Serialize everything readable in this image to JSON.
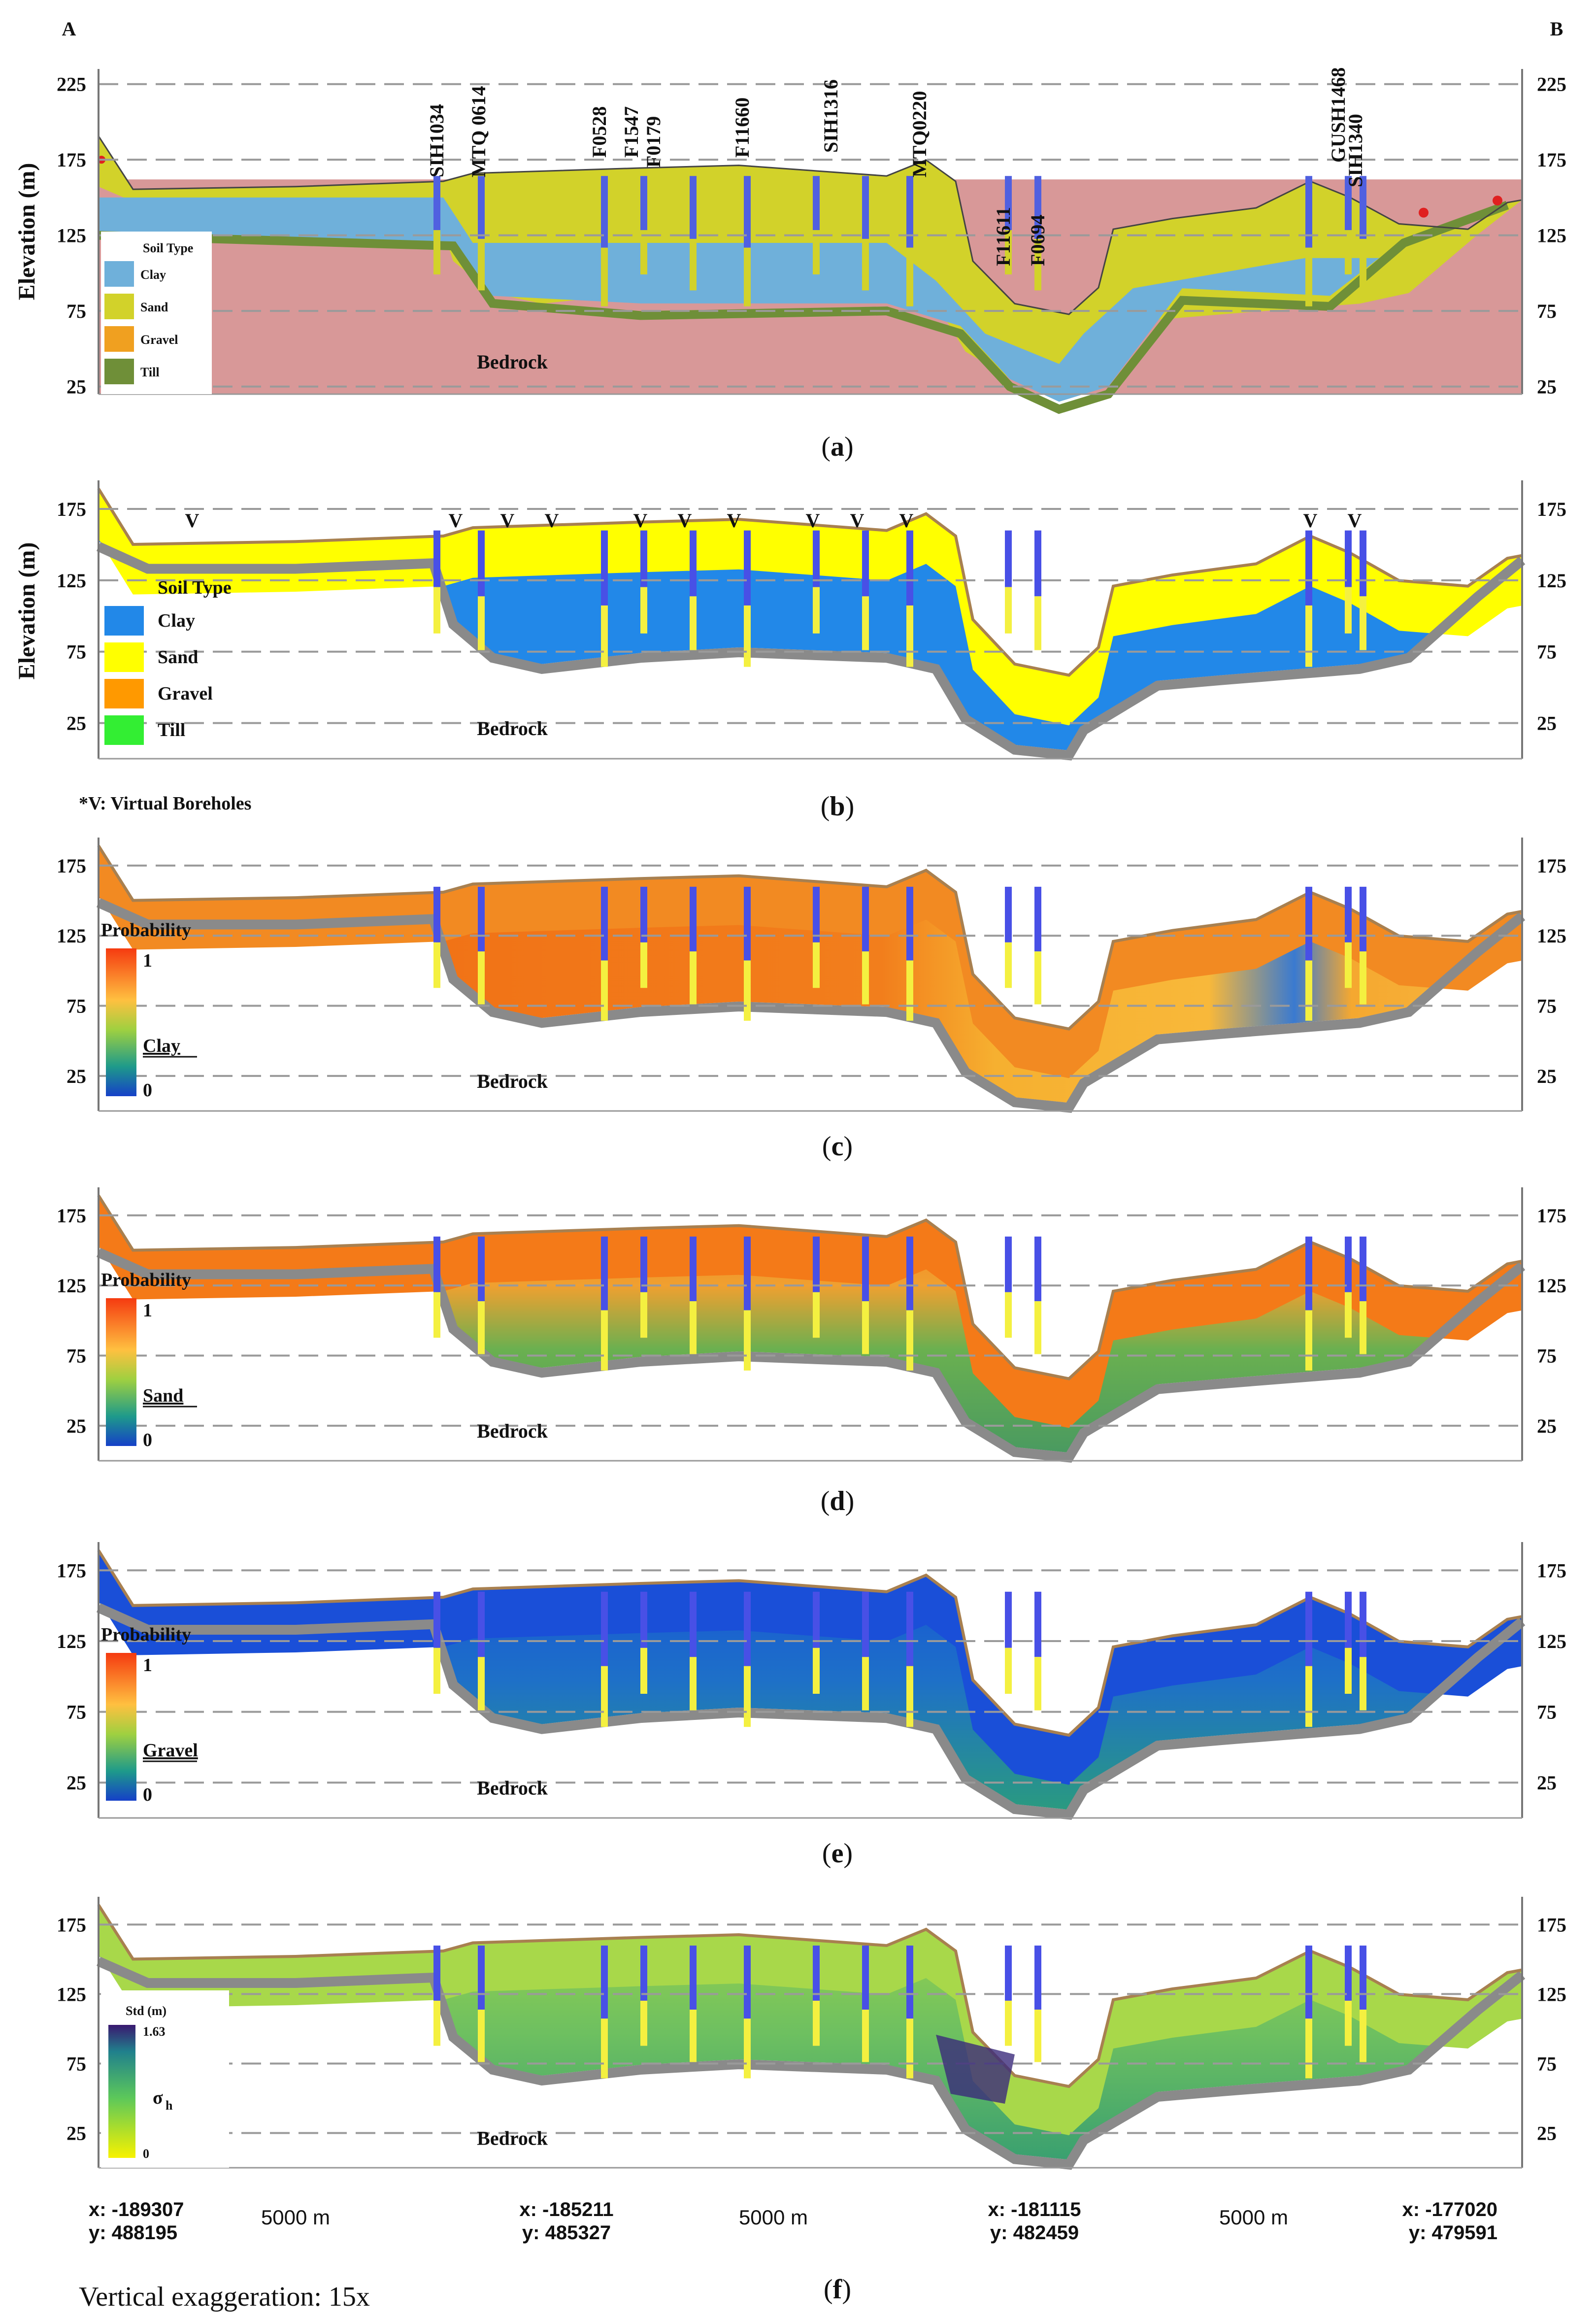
{
  "figure": {
    "endpoint_left": "A",
    "endpoint_right": "B",
    "y_axis_label": "Elevation (m)",
    "bedrock_label": "Bedrock",
    "virtual_boreholes_note": "*V: Virtual Boreholes",
    "virtual_marker": "V",
    "vertical_exaggeration": "Vertical exaggeration: 15x",
    "distance_label": "5000 m",
    "coords": [
      {
        "x": "x: -189307",
        "y": "y: 488195"
      },
      {
        "x": "x: -185211",
        "y": "y: 485327"
      },
      {
        "x": "x: -181115",
        "y": "y: 482459"
      },
      {
        "x": "x: -177020",
        "y": "y: 479591"
      }
    ]
  },
  "panels": [
    {
      "id": "a",
      "caption": "a",
      "ticks": [
        "225",
        "175",
        "125",
        "75",
        "25"
      ]
    },
    {
      "id": "b",
      "caption": "b",
      "ticks": [
        "175",
        "125",
        "75",
        "25"
      ]
    },
    {
      "id": "c",
      "caption": "c",
      "ticks": [
        "175",
        "125",
        "75",
        "25"
      ]
    },
    {
      "id": "d",
      "caption": "d",
      "ticks": [
        "175",
        "125",
        "75",
        "25"
      ]
    },
    {
      "id": "e",
      "caption": "e",
      "ticks": [
        "175",
        "125",
        "75",
        "25"
      ]
    },
    {
      "id": "f",
      "caption": "f",
      "ticks": [
        "175",
        "125",
        "75",
        "25"
      ]
    }
  ],
  "legend_a": {
    "title": "Soil Type",
    "items": [
      {
        "label": "Clay",
        "color": "#6fb0da"
      },
      {
        "label": "Sand",
        "color": "#d2d22a"
      },
      {
        "label": "Gravel",
        "color": "#f0a020"
      },
      {
        "label": "Till",
        "color": "#6f8f38"
      }
    ]
  },
  "legend_b": {
    "title": "Soil Type",
    "items": [
      {
        "label": "Clay",
        "color": "#2288e8"
      },
      {
        "label": "Sand",
        "color": "#ffff00"
      },
      {
        "label": "Gravel",
        "color": "#ff9900"
      },
      {
        "label": "Till",
        "color": "#33ee33"
      }
    ]
  },
  "prob_legends": [
    {
      "title": "Probability",
      "max": "1",
      "min": "0",
      "variable": "Clay"
    },
    {
      "title": "Probability",
      "max": "1",
      "min": "0",
      "variable": "Sand"
    },
    {
      "title": "Probability",
      "max": "1",
      "min": "0",
      "variable": "Gravel"
    }
  ],
  "std_legend": {
    "title": "Std (m)",
    "max": "1.63",
    "min": "0",
    "symbol": "σ",
    "subscript": "h"
  },
  "boreholes": [
    "SIH1034",
    "MTQ 0614",
    "F0528",
    "F1547",
    "F0179",
    "F11660",
    "SIH1316",
    "MTQ0220",
    "F11611",
    "F0694",
    "GUSH1468",
    "SIH1340"
  ],
  "colors": {
    "bedrock": "#d89898",
    "clay_a": "#6fb0da",
    "sand_a": "#d2d22a",
    "till_a": "#6f8f38",
    "clay_b": "#2288e8",
    "sand_b": "#ffff00",
    "till_b": "#33ee33",
    "gravel": "#ff9900",
    "surface_line": "#a88050",
    "base_gray": "#8a8a8a"
  }
}
